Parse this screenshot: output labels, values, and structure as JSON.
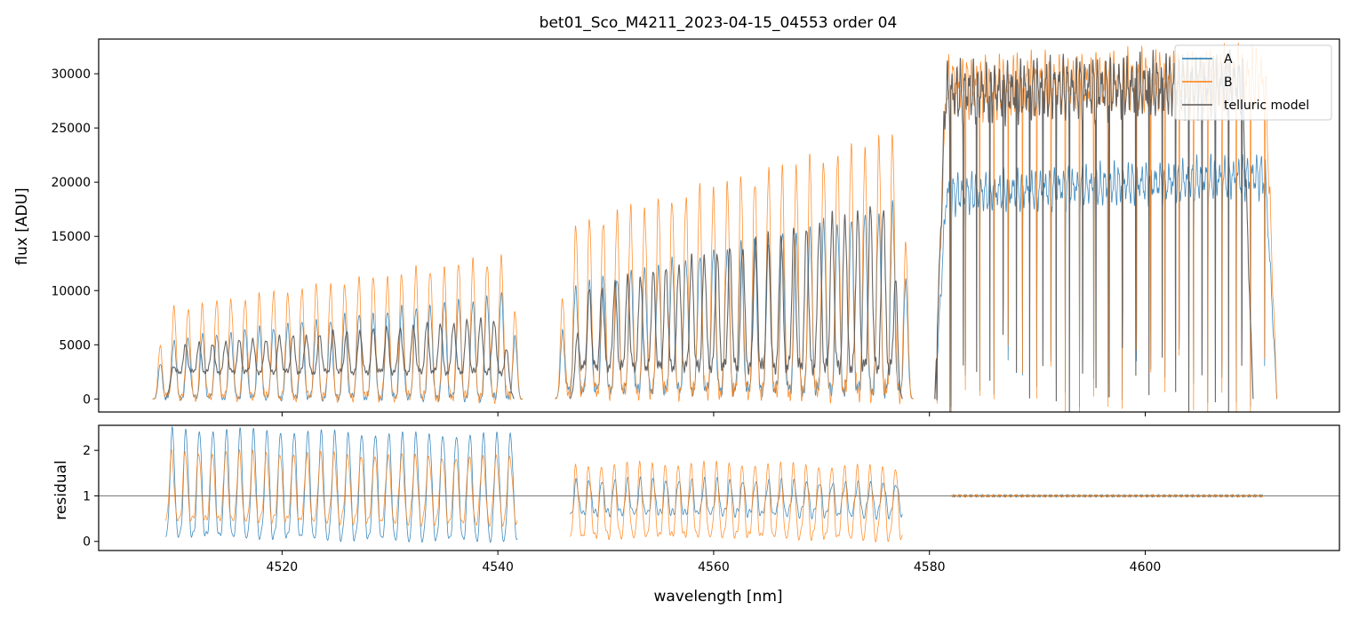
{
  "chart_data": [
    {
      "type": "line",
      "title": "bet01_Sco_M4211_2023-04-15_04553  order 04",
      "xlabel": "",
      "ylabel": "flux [ADU]",
      "xlim": [
        4503,
        4618
      ],
      "ylim": [
        -1200,
        33200
      ],
      "yticks": [
        0,
        5000,
        10000,
        15000,
        20000,
        25000,
        30000
      ],
      "legend": "top-right",
      "series": [
        {
          "name": "A",
          "color": "#1f77b4",
          "segments": [
            {
              "x0": 4508.0,
              "x1": 4542.3,
              "periods": 26,
              "trough": 150,
              "peakStart": 5200,
              "peakEnd": 9800,
              "wave": 11
            },
            {
              "x0": 4545.3,
              "x1": 4578.5,
              "periods": 26,
              "trough": 900,
              "peakStart": 10000,
              "peakEnd": 18000,
              "wave": 13
            },
            {
              "x0": 4580.5,
              "x1": 4612.2,
              "periods": 24,
              "trough": 1200,
              "peakStart": 20000,
              "peakEnd": 22000,
              "wave": 17,
              "deep": true
            }
          ]
        },
        {
          "name": "B",
          "color": "#ff7f0e",
          "segments": [
            {
              "x0": 4508.0,
              "x1": 4542.3,
              "periods": 26,
              "trough": 200,
              "peakStart": 8000,
              "peakEnd": 13300,
              "wave": 11
            },
            {
              "x0": 4545.3,
              "x1": 4578.5,
              "periods": 26,
              "trough": 700,
              "peakStart": 15500,
              "peakEnd": 24500,
              "wave": 13
            },
            {
              "x0": 4580.5,
              "x1": 4612.2,
              "periods": 24,
              "trough": 1000,
              "peakStart": 30500,
              "peakEnd": 31500,
              "wave": 17,
              "deep": true
            }
          ]
        },
        {
          "name": "telluric model",
          "color": "#555555",
          "segments": [
            {
              "x0": 4509.2,
              "x1": 4541.5,
              "periods": 26,
              "trough": 2500,
              "peakStart": 4800,
              "peakEnd": 7500,
              "wave": 11
            },
            {
              "x0": 4546.7,
              "x1": 4577.5,
              "periods": 26,
              "trough": 3000,
              "peakStart": 9500,
              "peakEnd": 18500,
              "wave": 13
            },
            {
              "x0": 4580.5,
              "x1": 4610.0,
              "periods": 24,
              "trough": 1100,
              "peakStart": 30000,
              "peakEnd": 31000,
              "wave": 17,
              "deep": true
            }
          ]
        }
      ]
    },
    {
      "type": "line",
      "title": "",
      "xlabel": "wavelength [nm]",
      "ylabel": "residual",
      "xlim": [
        4503,
        4618
      ],
      "ylim": [
        -0.2,
        2.55
      ],
      "xticks": [
        4520,
        4540,
        4560,
        4580,
        4600
      ],
      "yticks": [
        0,
        1,
        2
      ],
      "reference_line": 1,
      "series": [
        {
          "name": "A",
          "color": "#1f77b4",
          "segments": [
            {
              "x0": 4509.2,
              "x1": 4541.8,
              "periods": 26,
              "low": 0.1,
              "high": 2.4,
              "wave": 11
            },
            {
              "x0": 4546.7,
              "x1": 4577.5,
              "periods": 26,
              "low": 0.6,
              "high": 1.3,
              "wave": 13
            },
            {
              "x0": 4582.0,
              "x1": 4611.0,
              "periods": 0,
              "low": 0.97,
              "high": 1.03,
              "wave": 17
            }
          ]
        },
        {
          "name": "B",
          "color": "#ff7f0e",
          "segments": [
            {
              "x0": 4509.2,
              "x1": 4541.8,
              "periods": 26,
              "low": 0.45,
              "high": 1.9,
              "wave": 11
            },
            {
              "x0": 4546.7,
              "x1": 4577.5,
              "periods": 26,
              "low": 0.1,
              "high": 1.65,
              "wave": 13
            },
            {
              "x0": 4582.0,
              "x1": 4611.0,
              "periods": 0,
              "low": 0.97,
              "high": 1.03,
              "wave": 17
            }
          ]
        }
      ]
    }
  ]
}
